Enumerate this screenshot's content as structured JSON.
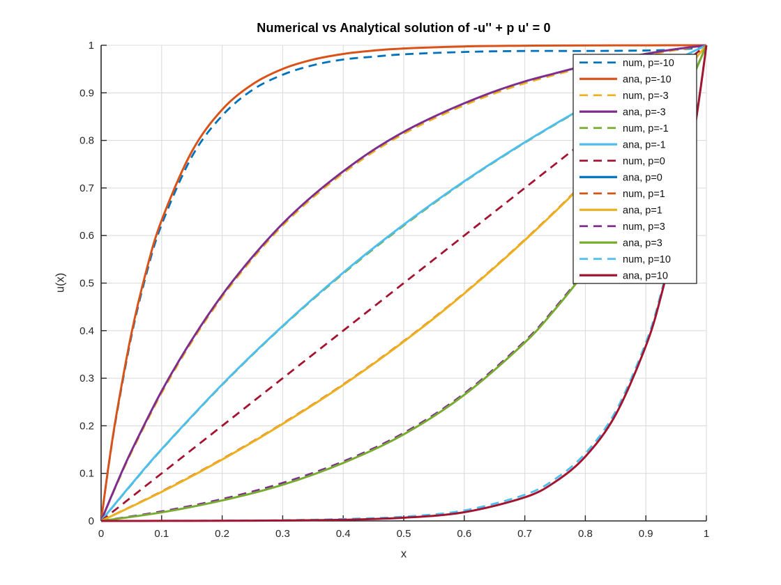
{
  "chart_data": {
    "type": "line",
    "title": "Numerical vs Analytical solution of -u'' + p u' = 0",
    "xlabel": "x",
    "ylabel": "u(x)",
    "xlim": [
      0,
      1
    ],
    "ylim": [
      0,
      1
    ],
    "xticks": [
      0,
      0.1,
      0.2,
      0.3,
      0.4,
      0.5,
      0.6,
      0.7,
      0.8,
      0.9,
      1
    ],
    "xtick_labels": [
      "0",
      "0.1",
      "0.2",
      "0.3",
      "0.4",
      "0.5",
      "0.6",
      "0.7",
      "0.8",
      "0.9",
      "1"
    ],
    "yticks": [
      0,
      0.1,
      0.2,
      0.3,
      0.4,
      0.5,
      0.6,
      0.7,
      0.8,
      0.9,
      1
    ],
    "ytick_labels": [
      "0",
      "0.1",
      "0.2",
      "0.3",
      "0.4",
      "0.5",
      "0.6",
      "0.7",
      "0.8",
      "0.9",
      "1"
    ],
    "grid": true,
    "legend_position": "northeast",
    "series": [
      {
        "label": "num, p=-10",
        "p": -10,
        "kind": "numerical",
        "style": "dashed",
        "color": "#0072BD",
        "x": [
          0,
          0.0125,
          0.025,
          0.05,
          0.075,
          0.1,
          0.15,
          0.2,
          0.25,
          0.3,
          0.35,
          0.4,
          0.45,
          0.5,
          0.6,
          0.7,
          0.8,
          0.9,
          0.95,
          0.98,
          1
        ],
        "y": [
          0,
          0.116,
          0.218,
          0.388,
          0.52,
          0.623,
          0.766,
          0.852,
          0.906,
          0.938,
          0.958,
          0.97,
          0.976,
          0.981,
          0.986,
          0.988,
          0.988,
          0.989,
          0.991,
          0.994,
          1
        ]
      },
      {
        "label": "ana, p=-10",
        "p": -10,
        "kind": "analytical",
        "style": "solid",
        "color": "#D95319",
        "x": [
          0,
          0.0125,
          0.025,
          0.05,
          0.075,
          0.1,
          0.15,
          0.2,
          0.25,
          0.3,
          0.35,
          0.4,
          0.45,
          0.5,
          0.6,
          0.7,
          0.8,
          0.9,
          1
        ],
        "y": [
          0,
          0.1175,
          0.2212,
          0.3935,
          0.5276,
          0.6321,
          0.7769,
          0.8647,
          0.9179,
          0.9502,
          0.9698,
          0.9817,
          0.9889,
          0.9933,
          0.9975,
          0.9991,
          0.9997,
          0.9999,
          1
        ]
      },
      {
        "label": "num, p=-3",
        "p": -3,
        "kind": "numerical",
        "style": "dashed",
        "color": "#EDB120",
        "x": [
          0,
          0.025,
          0.05,
          0.1,
          0.15,
          0.2,
          0.25,
          0.3,
          0.35,
          0.4,
          0.45,
          0.5,
          0.55,
          0.6,
          0.65,
          0.7,
          0.75,
          0.8,
          0.85,
          0.9,
          0.95,
          1
        ],
        "y": [
          0,
          0.074,
          0.144,
          0.269,
          0.377,
          0.471,
          0.551,
          0.621,
          0.68,
          0.731,
          0.776,
          0.814,
          0.846,
          0.874,
          0.899,
          0.92,
          0.938,
          0.954,
          0.967,
          0.979,
          0.99,
          1
        ]
      },
      {
        "label": "ana, p=-3",
        "p": -3,
        "kind": "analytical",
        "style": "solid",
        "color": "#7E2F8E",
        "x": [
          0,
          0.025,
          0.05,
          0.1,
          0.15,
          0.2,
          0.25,
          0.3,
          0.35,
          0.4,
          0.45,
          0.5,
          0.55,
          0.6,
          0.65,
          0.7,
          0.75,
          0.8,
          0.85,
          0.9,
          0.95,
          1
        ],
        "y": [
          0,
          0.076,
          0.147,
          0.273,
          0.381,
          0.475,
          0.555,
          0.625,
          0.684,
          0.735,
          0.78,
          0.818,
          0.85,
          0.878,
          0.903,
          0.924,
          0.941,
          0.957,
          0.97,
          0.982,
          0.992,
          1
        ]
      },
      {
        "label": "num, p=-1",
        "p": -1,
        "kind": "numerical",
        "style": "dashed",
        "color": "#77AC30",
        "x": [
          0,
          0.05,
          0.1,
          0.2,
          0.3,
          0.4,
          0.5,
          0.6,
          0.7,
          0.8,
          0.9,
          1
        ],
        "y": [
          0,
          0.076,
          0.15,
          0.286,
          0.409,
          0.52,
          0.621,
          0.713,
          0.795,
          0.87,
          0.938,
          1
        ]
      },
      {
        "label": "ana, p=-1",
        "p": -1,
        "kind": "analytical",
        "style": "solid",
        "color": "#4DBEEE",
        "x": [
          0,
          0.05,
          0.1,
          0.2,
          0.3,
          0.4,
          0.5,
          0.6,
          0.7,
          0.8,
          0.9,
          1
        ],
        "y": [
          0,
          0.077,
          0.151,
          0.287,
          0.41,
          0.522,
          0.623,
          0.714,
          0.796,
          0.871,
          0.939,
          1
        ]
      },
      {
        "label": "num, p=0",
        "p": 0,
        "kind": "numerical",
        "style": "dashed",
        "color": "#A2142F",
        "x": [
          0,
          0.25,
          0.5,
          0.75,
          1
        ],
        "y": [
          0,
          0.25,
          0.5,
          0.75,
          1
        ]
      },
      {
        "label": "ana, p=0",
        "p": 0,
        "kind": "analytical",
        "style": "solid",
        "color": "#0072BD",
        "x": [
          0,
          1
        ],
        "y": null,
        "visible": false
      },
      {
        "label": "num, p=1",
        "p": 1,
        "kind": "numerical",
        "style": "dashed",
        "color": "#D95319",
        "x": [
          0,
          0.1,
          0.2,
          0.3,
          0.4,
          0.5,
          0.6,
          0.7,
          0.8,
          0.9,
          0.95,
          1
        ],
        "y": [
          0,
          0.062,
          0.13,
          0.205,
          0.287,
          0.378,
          0.479,
          0.591,
          0.714,
          0.85,
          0.923,
          1
        ]
      },
      {
        "label": "ana, p=1",
        "p": 1,
        "kind": "analytical",
        "style": "solid",
        "color": "#EDB120",
        "x": [
          0,
          0.1,
          0.2,
          0.3,
          0.4,
          0.5,
          0.6,
          0.7,
          0.8,
          0.9,
          0.95,
          1
        ],
        "y": [
          0,
          0.061,
          0.129,
          0.204,
          0.286,
          0.377,
          0.478,
          0.59,
          0.713,
          0.849,
          0.923,
          1
        ]
      },
      {
        "label": "num, p=3",
        "p": 3,
        "kind": "numerical",
        "style": "dashed",
        "color": "#7E2F8E",
        "x": [
          0,
          0.1,
          0.2,
          0.3,
          0.4,
          0.5,
          0.6,
          0.7,
          0.75,
          0.8,
          0.85,
          0.9,
          0.95,
          1
        ],
        "y": [
          0,
          0.02,
          0.046,
          0.08,
          0.125,
          0.185,
          0.268,
          0.378,
          0.448,
          0.528,
          0.622,
          0.73,
          0.856,
          1
        ]
      },
      {
        "label": "ana, p=3",
        "p": 3,
        "kind": "analytical",
        "style": "solid",
        "color": "#77AC30",
        "x": [
          0,
          0.1,
          0.2,
          0.3,
          0.4,
          0.5,
          0.6,
          0.7,
          0.75,
          0.8,
          0.85,
          0.9,
          0.95,
          1
        ],
        "y": [
          0,
          0.018,
          0.043,
          0.076,
          0.122,
          0.182,
          0.265,
          0.375,
          0.445,
          0.525,
          0.619,
          0.727,
          0.853,
          1
        ]
      },
      {
        "label": "num, p=10",
        "p": 10,
        "kind": "numerical",
        "style": "dashed",
        "color": "#4DBEEE",
        "x": [
          0,
          0.1,
          0.2,
          0.3,
          0.4,
          0.5,
          0.6,
          0.7,
          0.75,
          0.8,
          0.85,
          0.9,
          0.925,
          0.95,
          0.975,
          0.99,
          1
        ],
        "y": [
          0,
          0.0002,
          0.0006,
          0.0015,
          0.004,
          0.009,
          0.022,
          0.055,
          0.088,
          0.142,
          0.23,
          0.375,
          0.479,
          0.612,
          0.783,
          0.908,
          1
        ]
      },
      {
        "label": "ana, p=10",
        "p": 10,
        "kind": "analytical",
        "style": "solid",
        "color": "#A2142F",
        "x": [
          0,
          0.1,
          0.2,
          0.3,
          0.4,
          0.5,
          0.6,
          0.7,
          0.75,
          0.8,
          0.85,
          0.9,
          0.925,
          0.95,
          0.975,
          0.99,
          1
        ],
        "y": [
          0,
          0.0001,
          0.0003,
          0.0009,
          0.0024,
          0.0067,
          0.0183,
          0.0497,
          0.082,
          0.1353,
          0.2231,
          0.3679,
          0.4724,
          0.6065,
          0.7788,
          0.9048,
          1
        ]
      }
    ]
  },
  "style": {
    "axis_color": "#262626",
    "grid_color": "#dcdcdc",
    "tick_label_color": "#262626",
    "legend_border_color": "#262626",
    "legend_background": "#ffffff",
    "title_color": "#000000",
    "background": "#ffffff"
  }
}
